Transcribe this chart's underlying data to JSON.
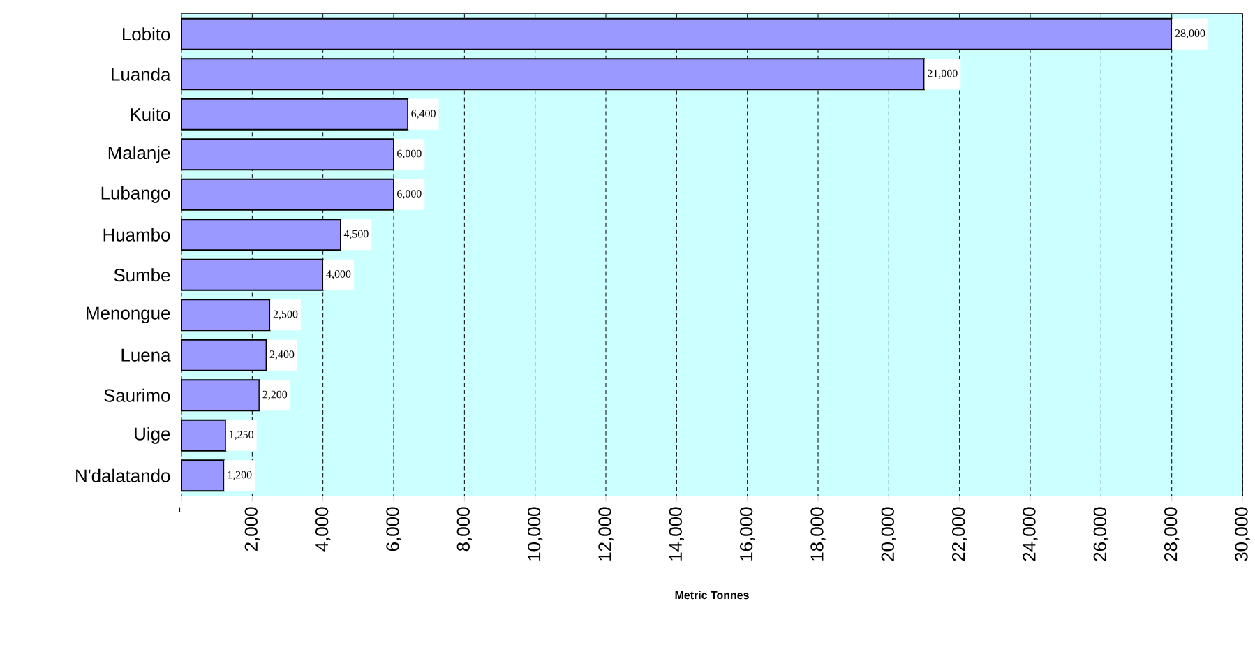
{
  "chart_data": {
    "type": "bar",
    "orientation": "horizontal",
    "xlabel": "Metric Tonnes",
    "categories": [
      "Lobito",
      "Luanda",
      "Kuito",
      "Malanje",
      "Lubango",
      "Huambo",
      "Sumbe",
      "Menongue",
      "Luena",
      "Saurimo",
      "Uige",
      "N'dalatando"
    ],
    "values": [
      28000,
      21000,
      6400,
      6000,
      6000,
      4500,
      4000,
      2500,
      2400,
      2200,
      1250,
      1200
    ],
    "value_labels": [
      "28,000",
      "21,000",
      "6,400",
      "6,000",
      "6,000",
      "4,500",
      "4,000",
      "2,500",
      "2,400",
      "2,200",
      "1,250",
      "1,200"
    ],
    "color": "#9999ff",
    "xlim": [
      0,
      30000
    ],
    "xticks": [
      {
        "value": 0,
        "label": "-"
      },
      {
        "value": 2000,
        "label": "2,000"
      },
      {
        "value": 4000,
        "label": "4,000"
      },
      {
        "value": 6000,
        "label": "6,000"
      },
      {
        "value": 8000,
        "label": "8,000"
      },
      {
        "value": 10000,
        "label": "10,000"
      },
      {
        "value": 12000,
        "label": "12,000"
      },
      {
        "value": 14000,
        "label": "14,000"
      },
      {
        "value": 16000,
        "label": "16,000"
      },
      {
        "value": 18000,
        "label": "18,000"
      },
      {
        "value": 20000,
        "label": "20,000"
      },
      {
        "value": 22000,
        "label": "22,000"
      },
      {
        "value": 24000,
        "label": "24,000"
      },
      {
        "value": 26000,
        "label": "26,000"
      },
      {
        "value": 28000,
        "label": "28,000"
      },
      {
        "value": 30000,
        "label": "30,000"
      }
    ],
    "grid": "x"
  }
}
